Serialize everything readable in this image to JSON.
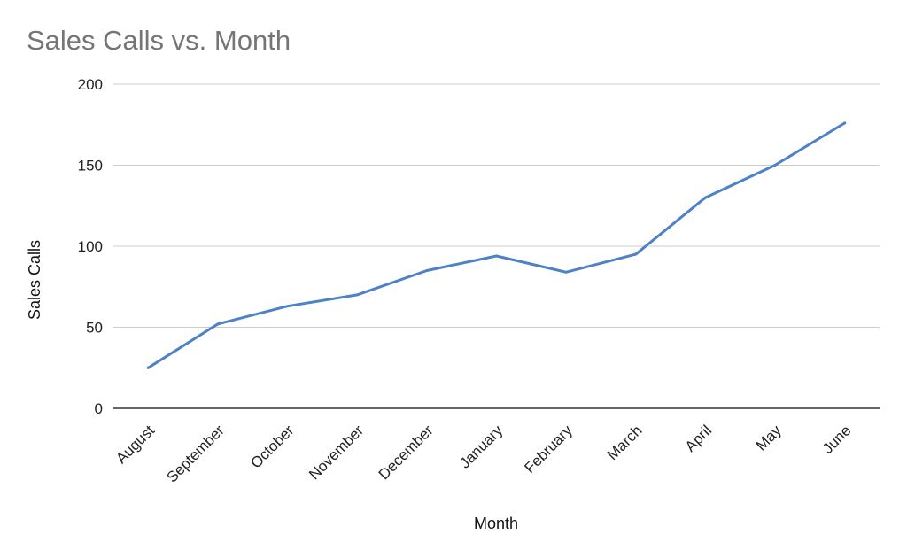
{
  "chart_data": {
    "type": "line",
    "title": "Sales Calls vs. Month",
    "xlabel": "Month",
    "ylabel": "Sales Calls",
    "categories": [
      "August",
      "September",
      "October",
      "November",
      "December",
      "January",
      "February",
      "March",
      "April",
      "May",
      "June"
    ],
    "series": [
      {
        "values": [
          25,
          52,
          63,
          70,
          85,
          94,
          84,
          95,
          130,
          150,
          176
        ],
        "color": "#4f81c7"
      }
    ],
    "ylim": [
      0,
      200
    ],
    "yticks": [
      0,
      50,
      100,
      150,
      200
    ],
    "grid": true,
    "legend": "none"
  }
}
